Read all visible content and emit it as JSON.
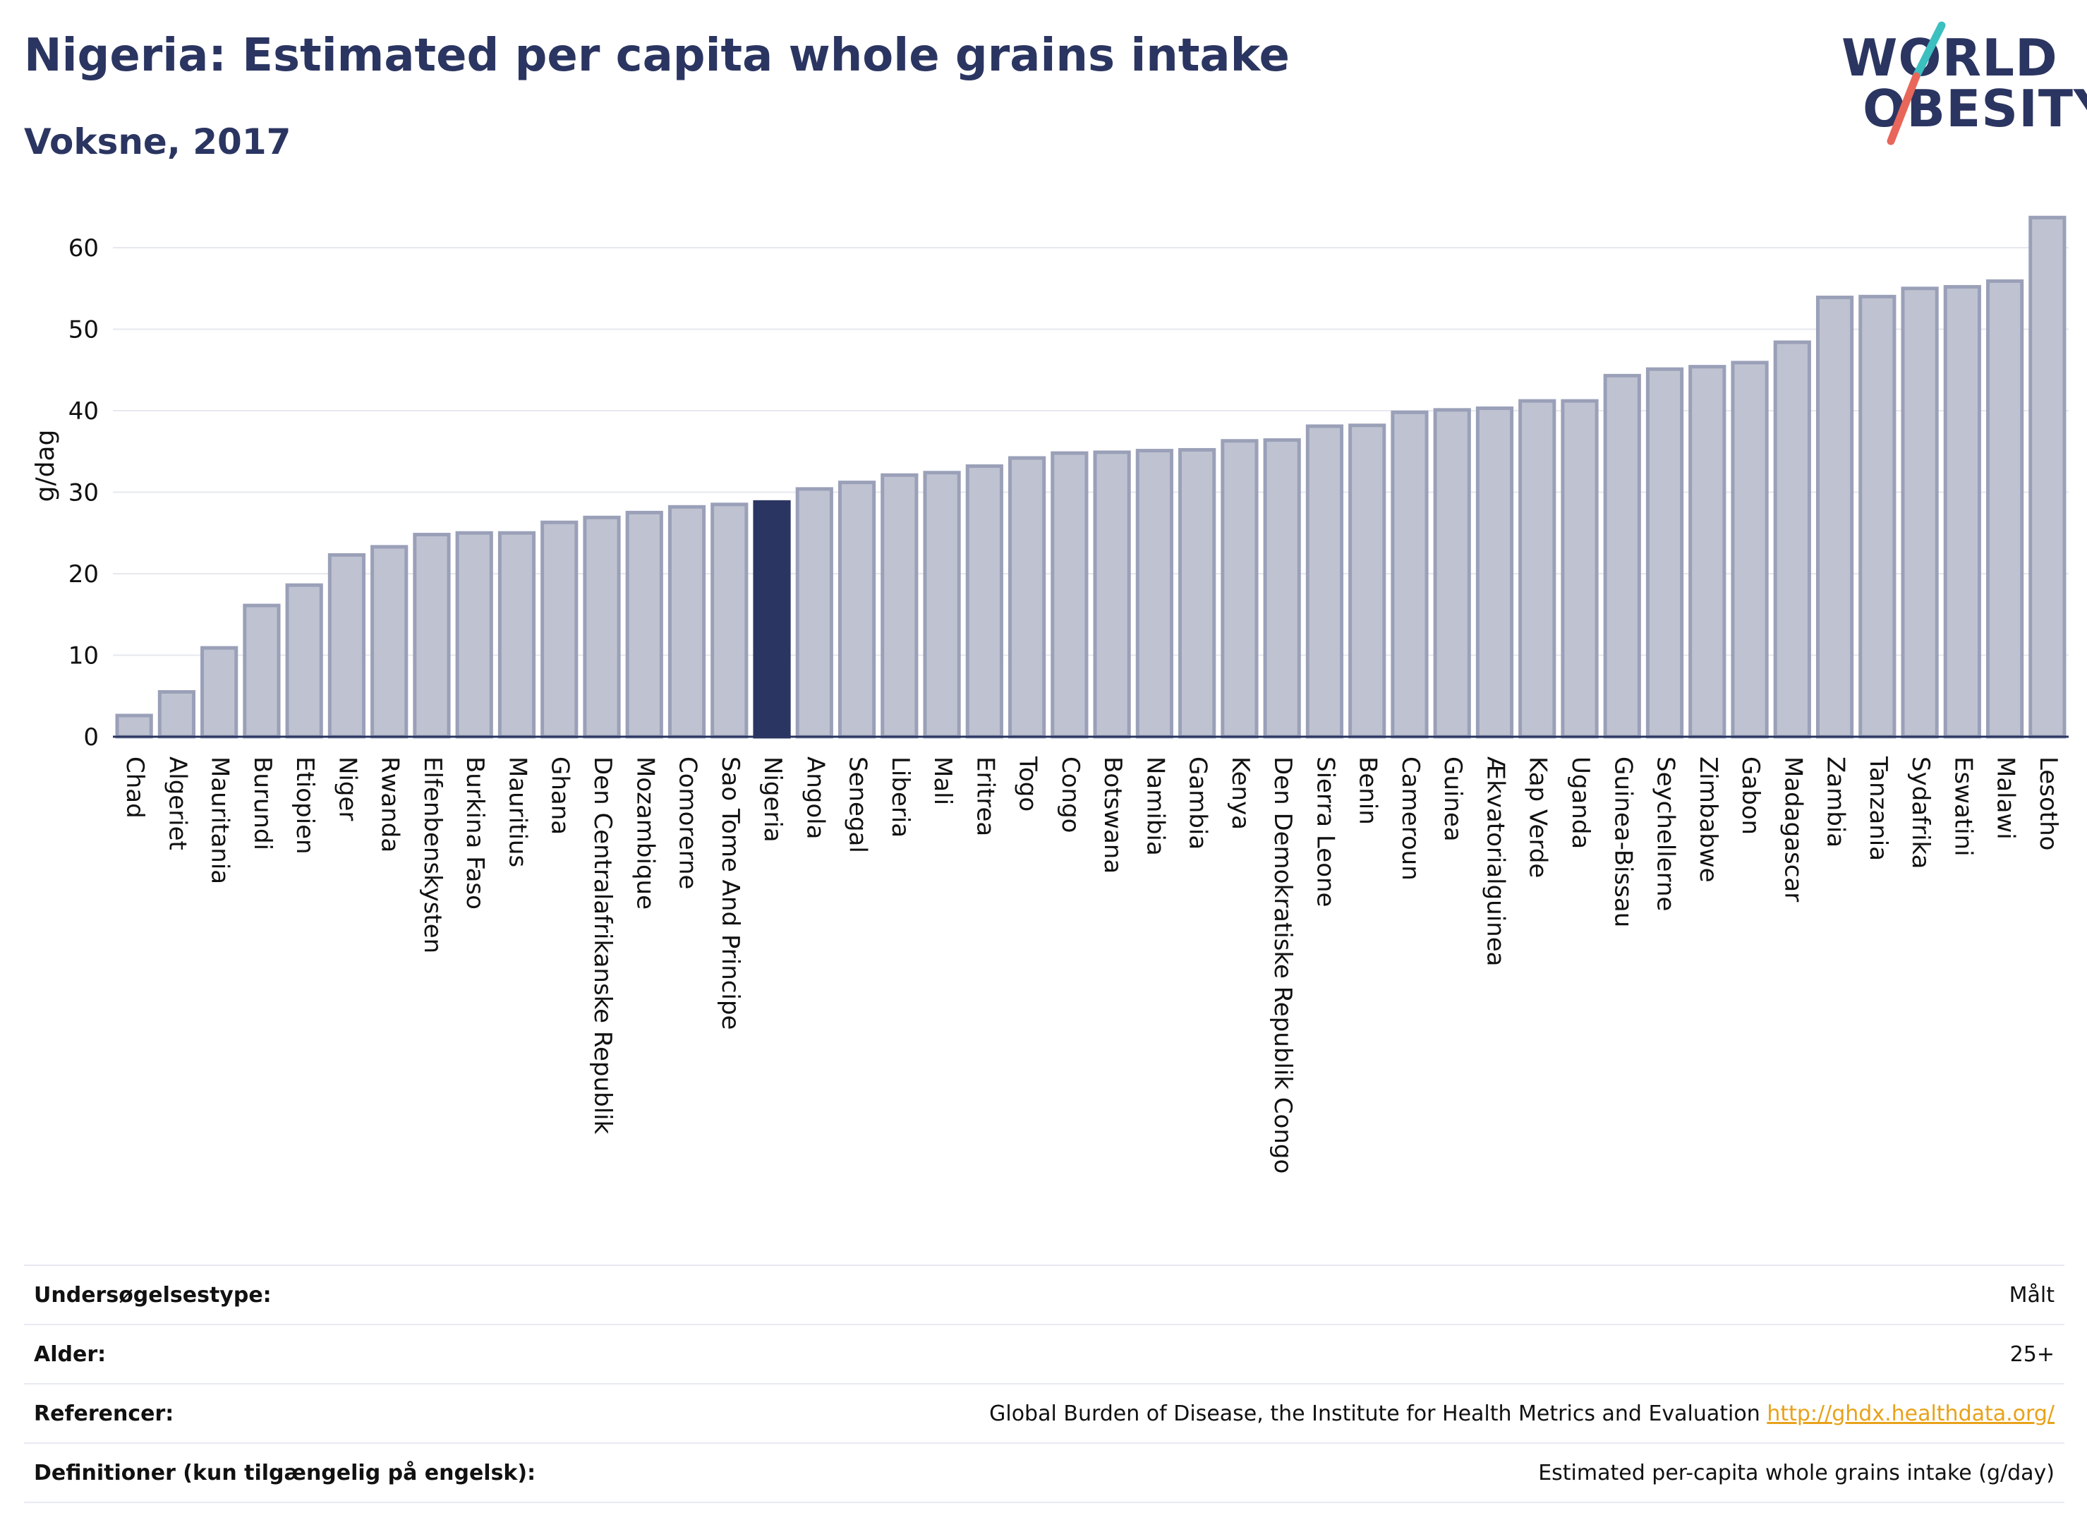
{
  "header": {
    "title": "Nigeria: Estimated per capita whole grains intake",
    "subtitle": "Voksne, 2017"
  },
  "logo": {
    "line1": "WORLD",
    "line2": "OBESITY",
    "accent_teal": "#3bbfbf",
    "accent_coral": "#e8675a"
  },
  "colors": {
    "bar_fill": "#bfc3d1",
    "bar_stroke": "#9aa0b8",
    "highlight": "#2b3561",
    "grid": "#e6e8ef",
    "axis": "#2b3561"
  },
  "chart_data": {
    "type": "bar",
    "ylabel": "g/dag",
    "xlabel": "",
    "ylim": [
      0,
      65
    ],
    "yticks": [
      0,
      10,
      20,
      30,
      40,
      50,
      60
    ],
    "grid": true,
    "highlight": "Nigeria",
    "categories": [
      "Chad",
      "Algeriet",
      "Mauritania",
      "Burundi",
      "Etiopien",
      "Niger",
      "Rwanda",
      "Elfenbenskysten",
      "Burkina Faso",
      "Mauritius",
      "Ghana",
      "Den Centralafrikanske Republik",
      "Mozambique",
      "Comorerne",
      "Sao Tome And Principe",
      "Nigeria",
      "Angola",
      "Senegal",
      "Liberia",
      "Mali",
      "Eritrea",
      "Togo",
      "Congo",
      "Botswana",
      "Namibia",
      "Gambia",
      "Kenya",
      "Den Demokratiske Republik Congo",
      "Sierra Leone",
      "Benin",
      "Cameroun",
      "Guinea",
      "Ækvatorialguinea",
      "Kap Verde",
      "Uganda",
      "Guinea-Bissau",
      "Seychellerne",
      "Zimbabwe",
      "Gabon",
      "Madagascar",
      "Zambia",
      "Tanzania",
      "Sydafrika",
      "Eswatini",
      "Malawi",
      "Lesotho"
    ],
    "values": [
      2.6,
      5.5,
      10.9,
      16.1,
      18.6,
      22.3,
      23.3,
      24.8,
      25.0,
      25.0,
      26.3,
      26.9,
      27.5,
      28.2,
      28.5,
      28.8,
      30.4,
      31.2,
      32.1,
      32.4,
      33.2,
      34.2,
      34.8,
      34.9,
      35.1,
      35.2,
      36.3,
      36.4,
      38.1,
      38.2,
      39.8,
      40.1,
      40.3,
      41.2,
      41.2,
      44.3,
      45.1,
      45.4,
      45.9,
      48.4,
      53.9,
      54.0,
      55.0,
      55.2,
      55.9,
      63.7
    ]
  },
  "info": [
    {
      "label": "Undersøgelsestype:",
      "value": "Målt"
    },
    {
      "label": "Alder:",
      "value": "25+"
    },
    {
      "label": "Referencer:",
      "value": "Global Burden of Disease, the Institute for Health Metrics and Evaluation",
      "link": "http://ghdx.healthdata.org/"
    },
    {
      "label": "Definitioner (kun tilgængelig på engelsk):",
      "value": "Estimated per-capita whole grains intake (g/day)"
    }
  ]
}
